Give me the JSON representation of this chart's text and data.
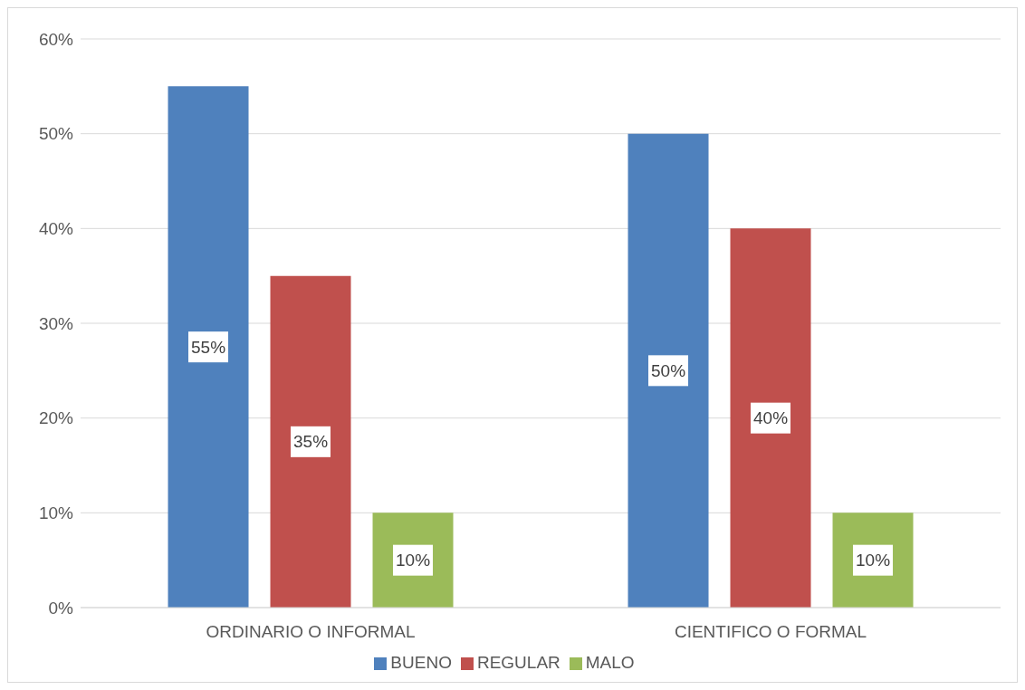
{
  "chart_data": {
    "type": "bar",
    "categories": [
      "ORDINARIO O INFORMAL",
      "CIENTIFICO O FORMAL"
    ],
    "series": [
      {
        "name": "BUENO",
        "color": "#4f81bd",
        "values": [
          55,
          50
        ],
        "value_labels": [
          "55%",
          "50%"
        ]
      },
      {
        "name": "REGULAR",
        "color": "#c0504d",
        "values": [
          35,
          40
        ],
        "value_labels": [
          "35%",
          "40%"
        ]
      },
      {
        "name": "MALO",
        "color": "#9bbb59",
        "values": [
          10,
          10
        ],
        "value_labels": [
          "10%",
          "10%"
        ]
      }
    ],
    "ylim": [
      0,
      60
    ],
    "yticks": [
      {
        "value": 0,
        "label": "0%"
      },
      {
        "value": 10,
        "label": "10%"
      },
      {
        "value": 20,
        "label": "20%"
      },
      {
        "value": 30,
        "label": "30%"
      },
      {
        "value": 40,
        "label": "40%"
      },
      {
        "value": 50,
        "label": "50%"
      },
      {
        "value": 60,
        "label": "60%"
      }
    ],
    "grid": "y",
    "legend": "bottom"
  }
}
